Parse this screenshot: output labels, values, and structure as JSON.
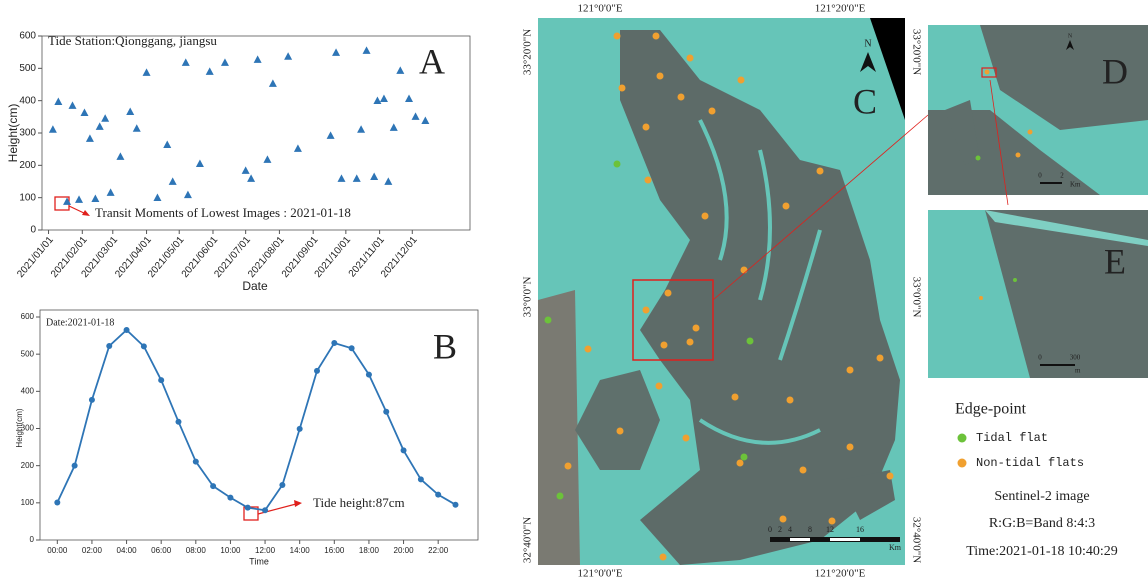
{
  "chart_data": [
    {
      "type": "scatter",
      "panel_label": "A",
      "title": "Tide Station:Qionggang, jiangsu",
      "annotation": "Transit Moments of Lowest Images : 2021-01-18",
      "xlabel": "Date",
      "ylabel": "Height(cm)",
      "color": "#2e75b6",
      "x": [
        "2021/01/05",
        "2021/01/10",
        "2021/01/18",
        "2021/01/23",
        "2021/01/29",
        "2021/02/03",
        "2021/02/08",
        "2021/02/13",
        "2021/02/17",
        "2021/02/22",
        "2021/02/27",
        "2021/03/08",
        "2021/03/17",
        "2021/03/23",
        "2021/04/01",
        "2021/04/11",
        "2021/04/20",
        "2021/04/25",
        "2021/05/07",
        "2021/05/09",
        "2021/05/20",
        "2021/05/29",
        "2021/06/12",
        "2021/07/01",
        "2021/07/06",
        "2021/07/12",
        "2021/07/21",
        "2021/07/26",
        "2021/08/09",
        "2021/08/18",
        "2021/09/17",
        "2021/09/22",
        "2021/09/27",
        "2021/10/11",
        "2021/10/15",
        "2021/10/20",
        "2021/10/27",
        "2021/10/30",
        "2021/11/05",
        "2021/11/09",
        "2021/11/14",
        "2021/11/20",
        "2021/11/28",
        "2021/12/04",
        "2021/12/13"
      ],
      "values": [
        310,
        396,
        87,
        384,
        93,
        362,
        282,
        96,
        319,
        344,
        115,
        226,
        365,
        313,
        486,
        99,
        263,
        149,
        517,
        108,
        204,
        489,
        517,
        183,
        158,
        526,
        217,
        452,
        536,
        251,
        291,
        548,
        158,
        158,
        310,
        554,
        164,
        399,
        405,
        149,
        316,
        492,
        405,
        350,
        337
      ],
      "xlim": [
        "2020/12/26",
        "2022/01/23"
      ],
      "xticks": [
        "2021/01/01",
        "2021/02/01",
        "2021/03/01",
        "2021/04/01",
        "2021/05/01",
        "2021/06/01",
        "2021/07/01",
        "2021/08/01",
        "2021/09/01",
        "2021/10/01",
        "2021/11/01",
        "2021/12/01"
      ],
      "ylim": [
        0,
        600
      ],
      "yticks": [
        0,
        100,
        200,
        300,
        400,
        500,
        600
      ]
    },
    {
      "type": "line",
      "panel_label": "B",
      "annotation": "Date:2021-01-18",
      "callout": "Tide height:87cm",
      "xlabel": "Time",
      "ylabel": "Height(cm)",
      "color": "#2e75b6",
      "x": [
        0,
        1,
        2,
        3,
        4,
        5,
        6,
        7,
        8,
        9,
        10,
        11,
        12,
        13,
        14,
        15,
        16,
        17,
        18,
        19,
        20,
        21,
        22,
        23
      ],
      "values": [
        101,
        200,
        377,
        522,
        565,
        521,
        430,
        318,
        211,
        145,
        114,
        87,
        80,
        148,
        299,
        455,
        530,
        516,
        445,
        345,
        241,
        163,
        122,
        95
      ],
      "xlim": [
        -1,
        24.3
      ],
      "xticks": [
        {
          "value": 0,
          "label": "00:00"
        },
        {
          "value": 2,
          "label": "02:00"
        },
        {
          "value": 4,
          "label": "04:00"
        },
        {
          "value": 6,
          "label": "06:00"
        },
        {
          "value": 8,
          "label": "08:00"
        },
        {
          "value": 10,
          "label": "10:00"
        },
        {
          "value": 12,
          "label": "12:00"
        },
        {
          "value": 14,
          "label": "14:00"
        },
        {
          "value": 16,
          "label": "16:00"
        },
        {
          "value": 18,
          "label": "18:00"
        },
        {
          "value": 20,
          "label": "20:00"
        },
        {
          "value": 22,
          "label": "22:00"
        }
      ],
      "ylim": [
        0,
        600
      ],
      "yticks": [
        0,
        100,
        200,
        300,
        400,
        500,
        600
      ]
    }
  ],
  "map": {
    "panel_labels": [
      "C",
      "D",
      "E"
    ],
    "north": "N",
    "lon_labels": [
      "121°0'0\"E",
      "121°20'0\"E"
    ],
    "lat_labels": [
      "33°20'0\"N",
      "33°0'0\"N",
      "32°40'0\"N"
    ],
    "scale_c": [
      "0",
      "2",
      "4",
      "8",
      "12",
      "16",
      "Km"
    ],
    "scale_d": [
      "0",
      "2",
      "Km"
    ],
    "scale_e": [
      "0",
      "300",
      "m"
    ]
  },
  "legend": {
    "title": "Edge-point",
    "items": [
      "Tidal flat",
      "Non-tidal flats"
    ],
    "notes": [
      "Sentinel-2 image",
      "R:G:B=Band 8:4:3",
      "Time:2021-01-18 10:40:29"
    ]
  }
}
